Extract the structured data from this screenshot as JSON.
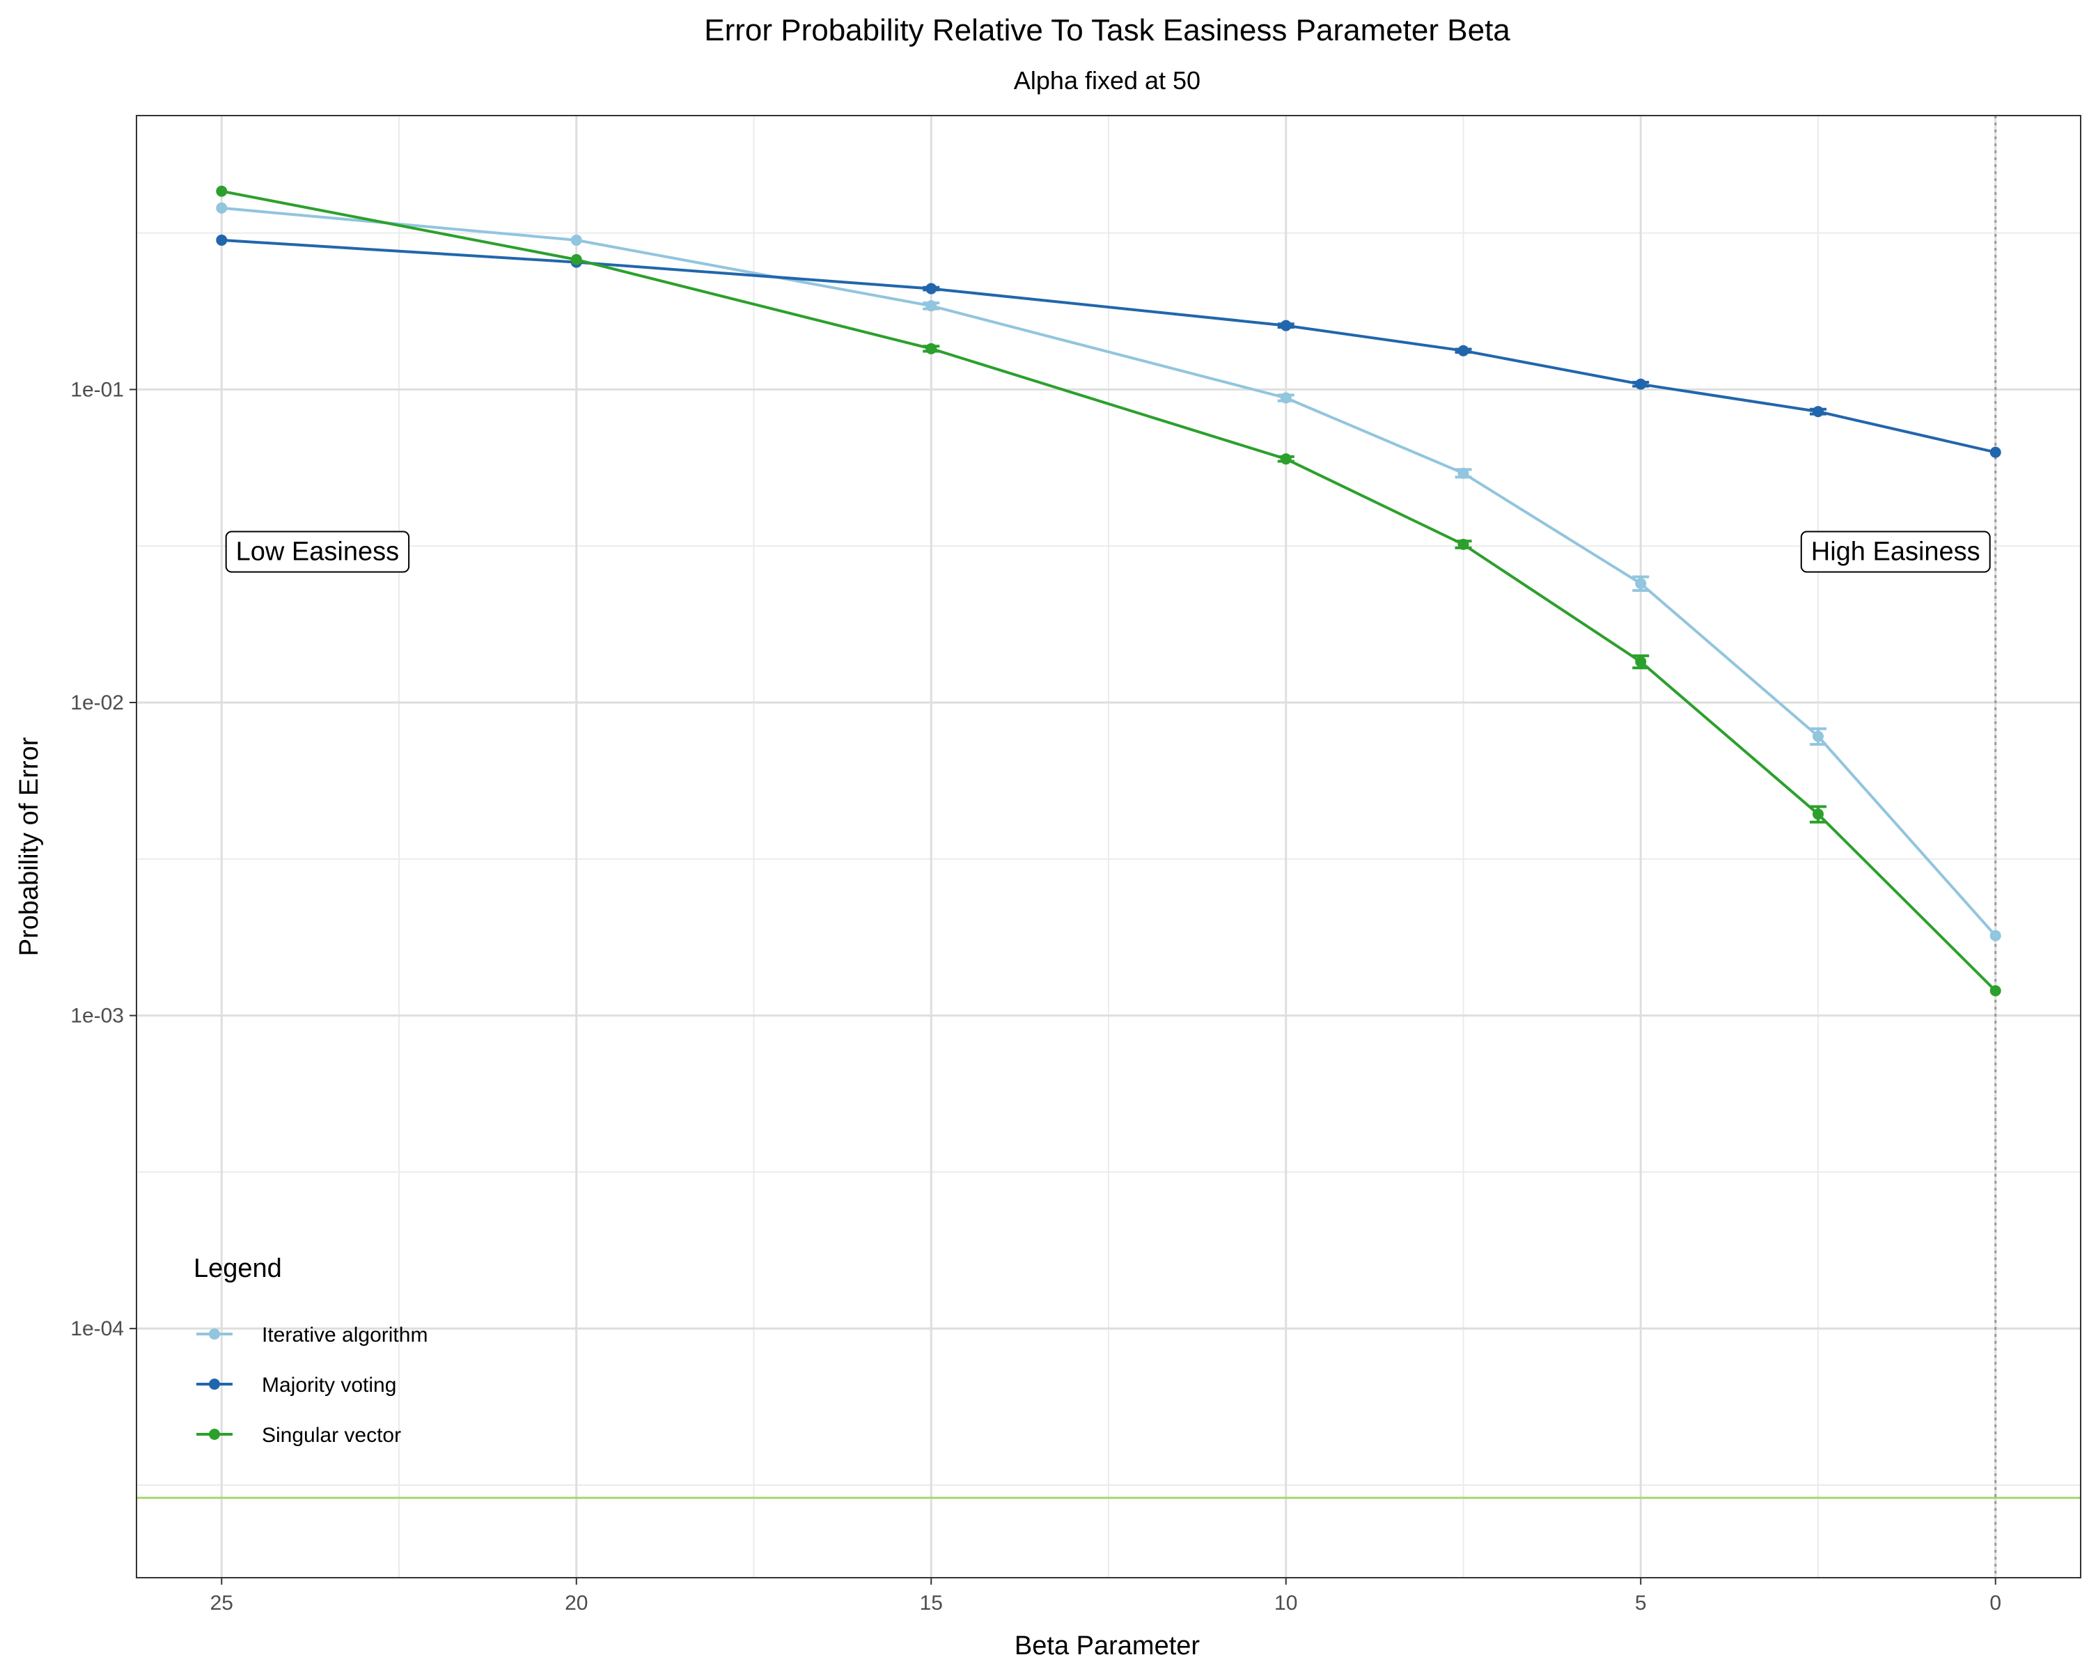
{
  "chart_data": {
    "type": "line",
    "title": "Error Probability Relative To Task Easiness Parameter Beta",
    "subtitle": "Alpha fixed at 50",
    "xlabel": "Beta Parameter",
    "ylabel": "Probability of Error",
    "x_reversed": true,
    "y_scale": "log10",
    "xlim": [
      26.2,
      -1.2
    ],
    "ylim": [
      1.6e-05,
      0.75
    ],
    "x_ticks": [
      25,
      20,
      15,
      10,
      5,
      0
    ],
    "x_tick_labels": [
      "25",
      "20",
      "15",
      "10",
      "5",
      "0"
    ],
    "y_ticks": [
      0.1,
      0.01,
      0.001,
      0.0001
    ],
    "y_tick_labels": [
      "1e-01",
      "1e-02",
      "1e-03",
      "1e-04"
    ],
    "x": [
      25,
      20,
      15,
      10,
      7.5,
      5,
      2.5,
      0
    ],
    "grid": true,
    "legend": {
      "title": "Legend",
      "placement": "bottom-left"
    },
    "series": [
      {
        "name": "Iterative algorithm",
        "color": "#92c5de",
        "values": [
          0.38,
          0.3,
          0.185,
          0.094,
          0.054,
          0.024,
          0.0078,
          0.0018
        ],
        "error_half_width": [
          0,
          0,
          0.004,
          0.002,
          0.0015,
          0.0012,
          0.00045,
          0
        ]
      },
      {
        "name": "Majority voting",
        "color": "#2166ac",
        "values": [
          0.3,
          0.255,
          0.21,
          0.16,
          0.133,
          0.104,
          0.085,
          0.063
        ],
        "error_half_width": [
          0,
          0,
          0.002,
          0.002,
          0.0015,
          0.0015,
          0.0015,
          0
        ]
      },
      {
        "name": "Singular vector",
        "color": "#2ca02c",
        "values": [
          0.43,
          0.26,
          0.135,
          0.06,
          0.032,
          0.0135,
          0.0044,
          0.0012
        ],
        "error_half_width": [
          0,
          0,
          0.0025,
          0.001,
          0.0008,
          0.0006,
          0.00025,
          0
        ]
      }
    ],
    "annotations": [
      {
        "text": "Low Easiness",
        "x": 24.8,
        "y": 0.03
      },
      {
        "text": "High Easiness",
        "x": 2.6,
        "y": 0.03
      }
    ],
    "reference_lines": [
      {
        "orientation": "horizontal",
        "y": 2.88e-05,
        "color": "#a6d96a",
        "style": "solid"
      },
      {
        "orientation": "vertical",
        "x": 0,
        "color": "#999999",
        "style": "dotted"
      }
    ]
  }
}
